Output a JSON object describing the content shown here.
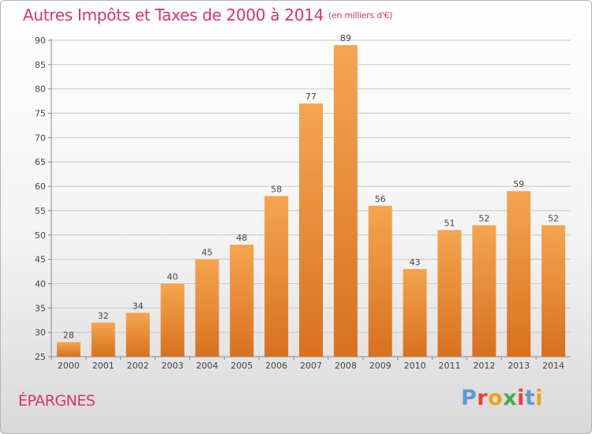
{
  "header": {
    "title": "Autres Impôts et Taxes de 2000 à 2014",
    "subtitle": "(en milliers d'€)"
  },
  "footer": {
    "location": "ÉPARGNES",
    "brand": "Proxiti"
  },
  "colors": {
    "title": "#d9346d",
    "bar_top": "#f5a54f",
    "bar_bottom": "#d8711f",
    "grid": "#c8c8c8",
    "brand_letters": [
      "#5a9ad6",
      "#e6403a",
      "#f0a020",
      "#4aa84a",
      "#e6403a",
      "#5a9ad6",
      "#f0a020"
    ]
  },
  "chart_data": {
    "type": "bar",
    "title": "Autres Impôts et Taxes de 2000 à 2014",
    "subtitle": "(en milliers d'€)",
    "categories": [
      "2000",
      "2001",
      "2002",
      "2003",
      "2004",
      "2005",
      "2006",
      "2007",
      "2008",
      "2009",
      "2010",
      "2011",
      "2012",
      "2013",
      "2014"
    ],
    "values": [
      28,
      32,
      34,
      40,
      45,
      48,
      58,
      77,
      89,
      56,
      43,
      51,
      52,
      59,
      52
    ],
    "ylim": [
      25,
      90
    ],
    "yticks": [
      25,
      30,
      35,
      40,
      45,
      50,
      55,
      60,
      65,
      70,
      75,
      80,
      85,
      90
    ],
    "xlabel": "",
    "ylabel": "",
    "grid": true,
    "data_labels": true
  }
}
